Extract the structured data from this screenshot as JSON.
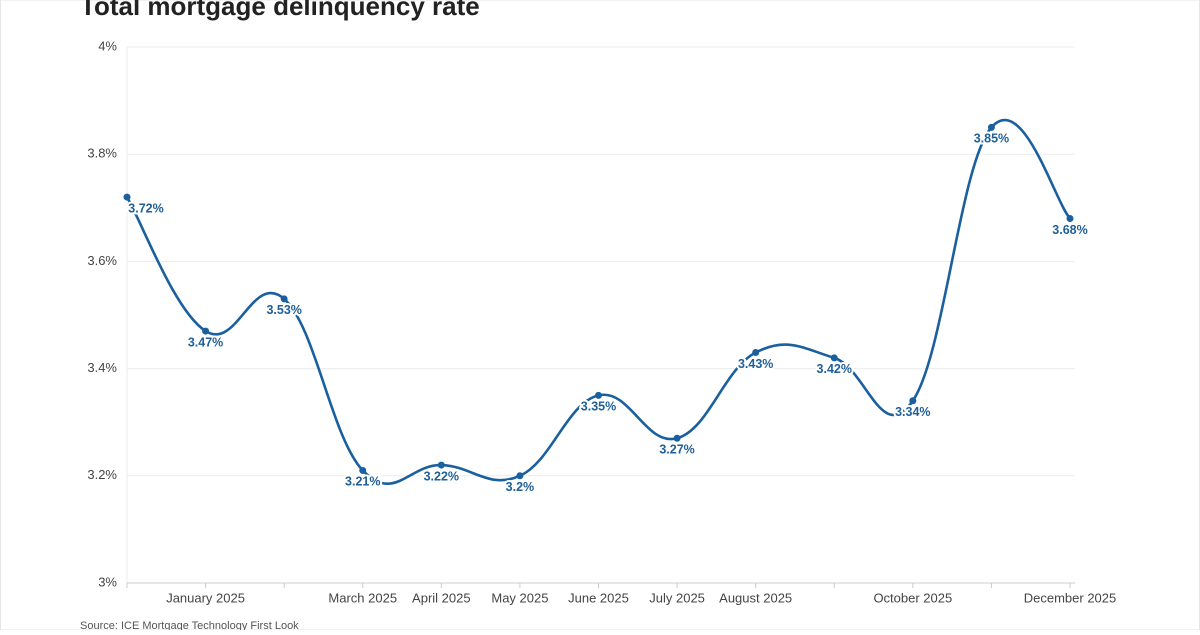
{
  "chart_data": {
    "type": "line",
    "title": "Total mortgage delinquency rate",
    "categories": [
      null,
      "January 2025",
      null,
      "March 2025",
      "April 2025",
      "May 2025",
      "June 2025",
      "July 2025",
      "August 2025",
      null,
      "October 2025",
      null,
      "December 2025"
    ],
    "series": [
      {
        "name": "Total mortgage delinquency rate",
        "color": "#1a5f9e",
        "values": [
          3.72,
          3.47,
          3.53,
          3.21,
          3.22,
          3.2,
          3.35,
          3.27,
          3.43,
          3.42,
          3.34,
          3.85,
          3.68
        ],
        "value_labels": [
          "3.72%",
          "3.47%",
          "3.53%",
          "3.21%",
          "3.22%",
          "3.2%",
          "3.35%",
          "3.27%",
          "3.43%",
          "3.42%",
          "3.34%",
          "3.85%",
          "3.68%"
        ]
      }
    ],
    "ylim": [
      3,
      4
    ],
    "yticks": [
      {
        "value": 3,
        "label": "3%"
      },
      {
        "value": 3.2,
        "label": "3.2%"
      },
      {
        "value": 3.4,
        "label": "3.4%"
      },
      {
        "value": 3.6,
        "label": "3.6%"
      },
      {
        "value": 3.8,
        "label": "3.8%"
      },
      {
        "value": 4,
        "label": "4%"
      }
    ],
    "grid": true,
    "source": "Source: ICE Mortgage Technology First Look"
  }
}
